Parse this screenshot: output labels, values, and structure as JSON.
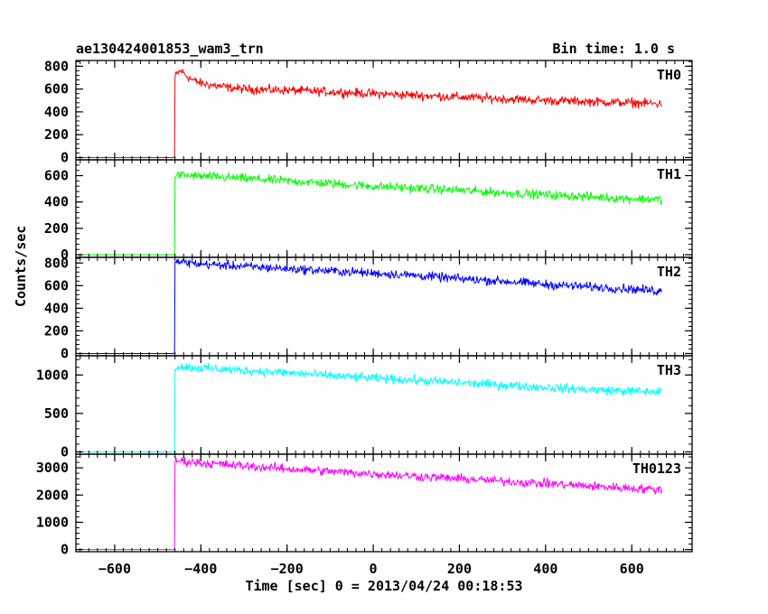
{
  "header": {
    "title": "ae130424001853_wam3_trn",
    "bin_time": "Bin time: 1.0 s"
  },
  "chart_data": {
    "type": "line",
    "title": "ae130424001853_wam3_trn",
    "subtitle": "Bin time: 1.0 s",
    "xlabel": "Time [sec] 0 = 2013/04/24 00:18:53",
    "ylabel": "Counts/sec",
    "xlim": [
      -690,
      740
    ],
    "xticks": [
      -600,
      -400,
      -200,
      0,
      200,
      400,
      600
    ],
    "xtick_labels": [
      "−600",
      "−400",
      "−200",
      "0",
      "200",
      "400",
      "600"
    ],
    "grid": false,
    "panels": [
      {
        "name": "TH0",
        "color": "#ff0000",
        "ylim": [
          -20,
          850
        ],
        "yticks": [
          0,
          200,
          400,
          600,
          800
        ],
        "ytick_labels": [
          "0",
          "200",
          "400",
          "600",
          "800"
        ],
        "x": [
          -675,
          -461,
          -460,
          -455,
          -445,
          -435,
          -420,
          -400,
          -350,
          -300,
          -200,
          -100,
          0,
          100,
          200,
          300,
          400,
          500,
          600,
          670
        ],
        "y": [
          0,
          0,
          700,
          740,
          760,
          720,
          680,
          650,
          620,
          600,
          590,
          575,
          560,
          545,
          530,
          515,
          500,
          490,
          480,
          470
        ]
      },
      {
        "name": "TH1",
        "color": "#00ff00",
        "ylim": [
          -20,
          720
        ],
        "yticks": [
          0,
          200,
          400,
          600
        ],
        "ytick_labels": [
          "0",
          "200",
          "400",
          "600"
        ],
        "x": [
          -675,
          -461,
          -460,
          -450,
          -400,
          -300,
          -200,
          -100,
          0,
          100,
          200,
          300,
          400,
          500,
          600,
          670
        ],
        "y": [
          0,
          0,
          600,
          605,
          595,
          580,
          560,
          540,
          520,
          505,
          490,
          470,
          455,
          440,
          425,
          420
        ]
      },
      {
        "name": "TH2",
        "color": "#0000ff",
        "ylim": [
          -20,
          850
        ],
        "yticks": [
          0,
          200,
          400,
          600,
          800
        ],
        "ytick_labels": [
          "0",
          "200",
          "400",
          "600",
          "800"
        ],
        "x": [
          -675,
          -461,
          -460,
          -450,
          -400,
          -300,
          -200,
          -100,
          0,
          100,
          200,
          300,
          400,
          500,
          600,
          670
        ],
        "y": [
          0,
          0,
          800,
          810,
          790,
          770,
          750,
          730,
          710,
          690,
          660,
          640,
          610,
          590,
          570,
          550
        ]
      },
      {
        "name": "TH3",
        "color": "#00ffff",
        "ylim": [
          -30,
          1250
        ],
        "yticks": [
          0,
          500,
          1000
        ],
        "ytick_labels": [
          "0",
          "500",
          "1000"
        ],
        "x": [
          -675,
          -461,
          -460,
          -450,
          -400,
          -300,
          -200,
          -100,
          0,
          100,
          200,
          300,
          400,
          500,
          600,
          670
        ],
        "y": [
          0,
          0,
          1100,
          1110,
          1090,
          1060,
          1030,
          990,
          960,
          930,
          900,
          870,
          840,
          810,
          790,
          780
        ]
      },
      {
        "name": "TH0123",
        "color": "#ff00ff",
        "ylim": [
          -80,
          3500
        ],
        "yticks": [
          0,
          1000,
          2000,
          3000
        ],
        "ytick_labels": [
          "0",
          "1000",
          "2000",
          "3000"
        ],
        "x": [
          -675,
          -461,
          -460,
          -450,
          -400,
          -300,
          -200,
          -100,
          0,
          100,
          200,
          300,
          400,
          500,
          600,
          670
        ],
        "y": [
          0,
          0,
          3250,
          3260,
          3180,
          3070,
          2960,
          2870,
          2780,
          2690,
          2600,
          2510,
          2420,
          2330,
          2250,
          2200
        ]
      }
    ]
  }
}
